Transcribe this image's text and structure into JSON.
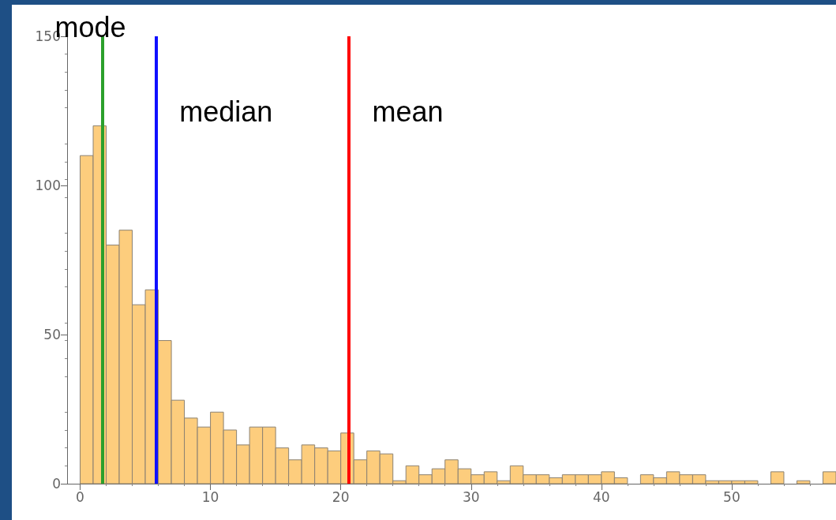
{
  "chart_data": {
    "type": "histogram",
    "bins": [
      0,
      1,
      2,
      3,
      4,
      5,
      6,
      7,
      8,
      9,
      10,
      11,
      12,
      13,
      14,
      15,
      16,
      17,
      18,
      19,
      20,
      21,
      22,
      23,
      24,
      25,
      26,
      27,
      28,
      29,
      30,
      31,
      32,
      33,
      34,
      35,
      36,
      37,
      38,
      39,
      40,
      41,
      42,
      43,
      44,
      45,
      46,
      47,
      48,
      49,
      50,
      51,
      52,
      53,
      54,
      55,
      56,
      57,
      58
    ],
    "values": [
      110,
      120,
      80,
      85,
      60,
      65,
      48,
      28,
      22,
      19,
      24,
      18,
      13,
      19,
      19,
      12,
      8,
      13,
      12,
      11,
      17,
      8,
      11,
      10,
      1,
      6,
      3,
      5,
      8,
      5,
      3,
      4,
      1,
      6,
      3,
      3,
      2,
      3,
      3,
      3,
      4,
      2,
      0,
      3,
      2,
      4,
      3,
      3,
      1,
      1,
      1,
      1,
      0,
      4,
      0,
      1,
      0,
      4
    ],
    "color": "#fdcd7d",
    "xlim": [
      -1,
      58
    ],
    "xticks": [
      0,
      10,
      20,
      30,
      40,
      50
    ],
    "ylim": [
      0,
      150
    ],
    "yticks": [
      0,
      50,
      100,
      150
    ],
    "grid": false,
    "legend": false,
    "ref_lines": [
      {
        "axis": "x",
        "value": 1.7,
        "label": "mode",
        "color": "#2ca02c"
      },
      {
        "axis": "x",
        "value": 5.8,
        "label": "median",
        "color": "#1010ff"
      },
      {
        "axis": "x",
        "value": 20.6,
        "label": "mean",
        "color": "#ff0000"
      }
    ]
  }
}
